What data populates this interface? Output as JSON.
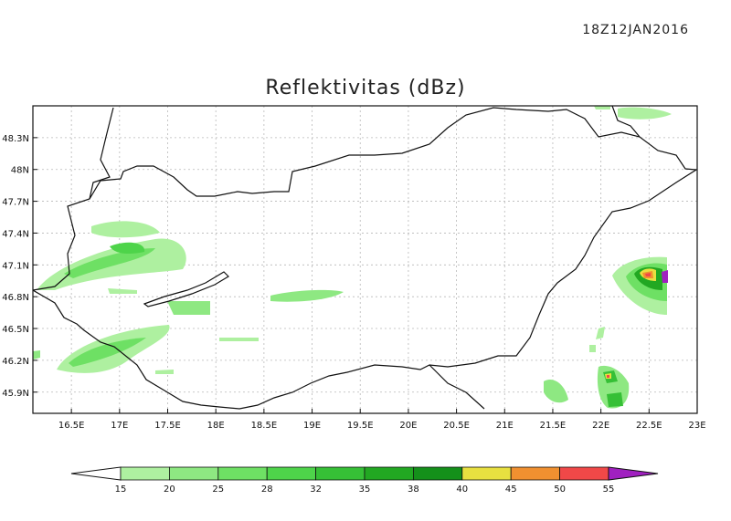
{
  "timestamp": "18Z12JAN2016",
  "title": "Reflektivitas (dBz)",
  "lat_ticks": [
    "48.3N",
    "48N",
    "47.7N",
    "47.4N",
    "47.1N",
    "46.8N",
    "46.5N",
    "46.2N",
    "45.9N"
  ],
  "lon_ticks": [
    "16.5E",
    "17E",
    "17.5E",
    "18E",
    "18.5E",
    "19E",
    "19.5E",
    "20E",
    "20.5E",
    "21E",
    "21.5E",
    "22E",
    "22.5E",
    "23E"
  ],
  "map": {
    "lon_range": [
      16.1,
      23.0
    ],
    "lat_range": [
      45.7,
      48.6
    ]
  },
  "colorbar": {
    "labels": [
      "15",
      "20",
      "25",
      "28",
      "32",
      "35",
      "38",
      "40",
      "45",
      "50",
      "55"
    ],
    "colors": [
      "#aef0a0",
      "#8ee882",
      "#6ee064",
      "#4ed44a",
      "#36c036",
      "#22a822",
      "#14901a",
      "#e8e040",
      "#f09030",
      "#f04848",
      "#a020c0"
    ]
  }
}
